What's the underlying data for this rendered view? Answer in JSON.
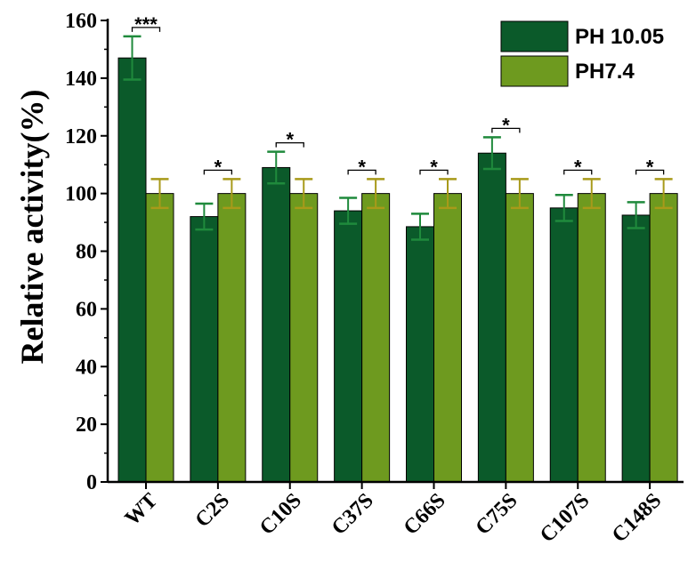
{
  "chart_data": {
    "type": "bar",
    "title": "",
    "xlabel": "",
    "ylabel": "Relative activity(%)",
    "ylim": [
      0,
      160
    ],
    "yticks": [
      0,
      20,
      40,
      60,
      80,
      100,
      120,
      140,
      160
    ],
    "legend_position": "top-right",
    "categories": [
      "WT",
      "C2S",
      "C10S",
      "C37S",
      "C66S",
      "C75S",
      "C107S",
      "C148S"
    ],
    "series": [
      {
        "name": "PH 10.05",
        "color": "#0b5a2a",
        "error_color": "#1f8a3c",
        "values": [
          147,
          92,
          109,
          94,
          88.5,
          114,
          95,
          92.5
        ],
        "errors": [
          7.5,
          4.5,
          5.5,
          4.5,
          4.5,
          5.5,
          4.5,
          4.5
        ]
      },
      {
        "name": "PH7.4",
        "color": "#6e9a1f",
        "error_color": "#a89a1a",
        "values": [
          100,
          100,
          100,
          100,
          100,
          100,
          100,
          100
        ],
        "errors": [
          5,
          5,
          5,
          5,
          5,
          5,
          5,
          5
        ]
      }
    ],
    "significance": [
      "***",
      "*",
      "*",
      "*",
      "*",
      "*",
      "*",
      "*"
    ]
  }
}
